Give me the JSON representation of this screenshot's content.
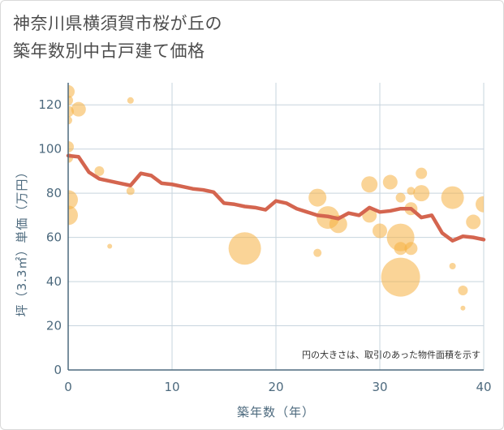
{
  "chart_data": {
    "type": "scatter",
    "title": [
      "神奈川県横須賀市桜が丘の",
      "築年数別中古戸建て価格"
    ],
    "xlabel": "築年数（年）",
    "ylabel": "坪（3.3㎡）単価（万円）",
    "xlim": [
      0,
      40
    ],
    "ylim": [
      0,
      130
    ],
    "xticks": [
      0,
      10,
      20,
      30,
      40
    ],
    "yticks": [
      0,
      20,
      40,
      60,
      80,
      100,
      120
    ],
    "grid": true,
    "annotation": "円の大きさは、取引のあった物件面積を示す",
    "colors": {
      "bubble": "#f5b041",
      "line": "#d4654f",
      "grid": "#c7d4de",
      "axis": "#4d6a7e"
    },
    "bubbles": [
      {
        "x": 0,
        "y": 126,
        "size": 8
      },
      {
        "x": 0,
        "y": 122,
        "size": 6
      },
      {
        "x": 0,
        "y": 117,
        "size": 7
      },
      {
        "x": 0,
        "y": 113,
        "size": 5
      },
      {
        "x": 1,
        "y": 118,
        "size": 9
      },
      {
        "x": 0,
        "y": 101,
        "size": 7
      },
      {
        "x": 0,
        "y": 96,
        "size": 6
      },
      {
        "x": 0,
        "y": 77,
        "size": 12
      },
      {
        "x": 0,
        "y": 70,
        "size": 12
      },
      {
        "x": 3,
        "y": 90,
        "size": 6
      },
      {
        "x": 4,
        "y": 56,
        "size": 3
      },
      {
        "x": 6,
        "y": 122,
        "size": 4
      },
      {
        "x": 6,
        "y": 81,
        "size": 5
      },
      {
        "x": 17,
        "y": 55,
        "size": 20
      },
      {
        "x": 24,
        "y": 78,
        "size": 11
      },
      {
        "x": 24,
        "y": 53,
        "size": 5
      },
      {
        "x": 25,
        "y": 69,
        "size": 14
      },
      {
        "x": 26,
        "y": 66,
        "size": 11
      },
      {
        "x": 29,
        "y": 84,
        "size": 10
      },
      {
        "x": 29,
        "y": 70,
        "size": 9
      },
      {
        "x": 30,
        "y": 63,
        "size": 9
      },
      {
        "x": 31,
        "y": 85,
        "size": 9
      },
      {
        "x": 32,
        "y": 78,
        "size": 6
      },
      {
        "x": 32,
        "y": 60,
        "size": 17
      },
      {
        "x": 32,
        "y": 55,
        "size": 8
      },
      {
        "x": 32,
        "y": 42,
        "size": 24
      },
      {
        "x": 33,
        "y": 81,
        "size": 5
      },
      {
        "x": 33,
        "y": 55,
        "size": 8
      },
      {
        "x": 33,
        "y": 73,
        "size": 8
      },
      {
        "x": 34,
        "y": 89,
        "size": 7
      },
      {
        "x": 34,
        "y": 80,
        "size": 10
      },
      {
        "x": 37,
        "y": 78,
        "size": 14
      },
      {
        "x": 37,
        "y": 47,
        "size": 4
      },
      {
        "x": 38,
        "y": 36,
        "size": 6
      },
      {
        "x": 38,
        "y": 28,
        "size": 3
      },
      {
        "x": 39,
        "y": 67,
        "size": 9
      },
      {
        "x": 40,
        "y": 75,
        "size": 10
      }
    ],
    "trend": {
      "x": [
        0,
        1,
        2,
        3,
        4,
        5,
        6,
        7,
        8,
        9,
        10,
        11,
        12,
        13,
        14,
        15,
        16,
        17,
        18,
        19,
        20,
        21,
        22,
        23,
        24,
        25,
        26,
        27,
        28,
        29,
        30,
        31,
        32,
        33,
        34,
        35,
        36,
        37,
        38,
        39,
        40
      ],
      "y": [
        97,
        96.5,
        89.5,
        86.5,
        85.5,
        84.5,
        83.5,
        89,
        88,
        84.5,
        84,
        83,
        82,
        81.5,
        80.5,
        75.5,
        75,
        74,
        73.5,
        72.5,
        76.5,
        75.5,
        73,
        71.5,
        70,
        69.5,
        68.5,
        71,
        70,
        73.5,
        71.5,
        72,
        73,
        73,
        69,
        70,
        62,
        58.5,
        60.5,
        60,
        59
      ]
    }
  }
}
